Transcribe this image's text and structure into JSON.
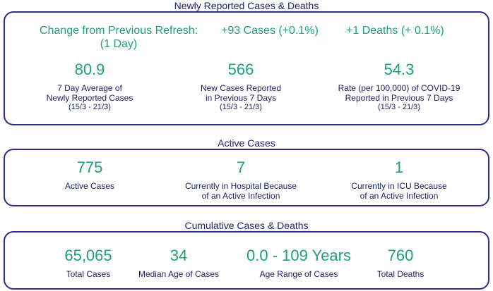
{
  "sections": {
    "reported": {
      "title": "Newly Reported Cases & Deaths",
      "change_label_line1": "Change from Previous Refresh:",
      "change_label_line2": "(1 Day)",
      "change_cases": "+93 Cases (+0.1%)",
      "change_deaths": "+1 Deaths (+ 0.1%)",
      "stats": [
        {
          "value": "80.9",
          "label_line1": "7 Day Average of",
          "label_line2": "Newly Reported Cases",
          "period": "(15/3 - 21/3)"
        },
        {
          "value": "566",
          "label_line1": "New Cases Reported",
          "label_line2": "in Previous 7 Days",
          "period": "(15/3 - 21/3)"
        },
        {
          "value": "54.3",
          "label_line1": "Rate (per 100,000) of COVID-19",
          "label_line2": "Reported in Previous 7 Days",
          "period": "(15/3 - 21/3)"
        }
      ]
    },
    "active": {
      "title": "Active Cases",
      "stats": [
        {
          "value": "775",
          "label_line1": "Active Cases",
          "label_line2": ""
        },
        {
          "value": "7",
          "label_line1": "Currently in Hospital Because",
          "label_line2": "of an Active Infection"
        },
        {
          "value": "1",
          "label_line1": "Currently in ICU Because",
          "label_line2": "of an Active Infection"
        }
      ]
    },
    "cumulative": {
      "title": "Cumulative Cases & Deaths",
      "stats": [
        {
          "value": "65,065",
          "label": "Total Cases"
        },
        {
          "value": "34",
          "label": "Median Age of Cases"
        },
        {
          "value": "0.0 - 109 Years",
          "label": "Age Range of Cases"
        },
        {
          "value": "760",
          "label": "Total Deaths"
        }
      ]
    }
  },
  "colors": {
    "accent": "#1f9e7a",
    "text": "#1f2266",
    "border": "#2b2f86"
  }
}
